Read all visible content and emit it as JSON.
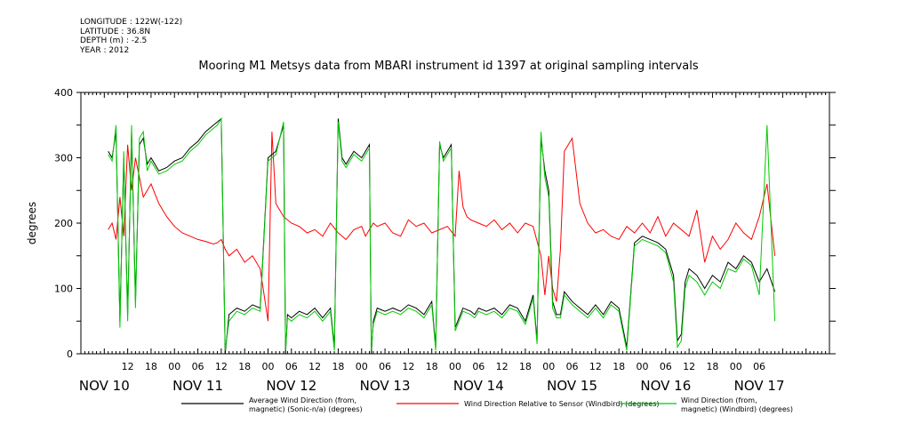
{
  "meta": {
    "longitude": "LONGITUDE : 122W(-122)",
    "latitude": "LATITUDE : 36.8N",
    "depth": "DEPTH (m) : -2.5",
    "year": "YEAR : 2012"
  },
  "chart_data": {
    "type": "line",
    "title": "Mooring M1 Metsys data from MBARI instrument id 1397 at original sampling intervals",
    "ylabel": "degrees",
    "ylim": [
      0,
      400
    ],
    "yticks": [
      0,
      100,
      200,
      300,
      400
    ],
    "xrange_hours": [
      0,
      192
    ],
    "x_axis_origin": "NOV 10 00",
    "hour_ticks": [
      "12",
      "18",
      "00",
      "06",
      "12",
      "18",
      "00",
      "06",
      "12",
      "18",
      "00",
      "06",
      "12",
      "18",
      "00",
      "06",
      "12",
      "18",
      "00",
      "06",
      "12",
      "18",
      "00",
      "06",
      "12",
      "18",
      "00",
      "06"
    ],
    "hour_tick_positions": [
      12,
      18,
      24,
      30,
      36,
      42,
      48,
      54,
      60,
      66,
      72,
      78,
      84,
      90,
      96,
      102,
      108,
      114,
      120,
      126,
      132,
      138,
      144,
      150,
      156,
      162,
      168,
      174
    ],
    "day_labels": [
      "NOV 10",
      "NOV 11",
      "NOV 12",
      "NOV 13",
      "NOV 14",
      "NOV 15",
      "NOV 16",
      "NOV 17"
    ],
    "day_label_positions": [
      6,
      30,
      54,
      78,
      102,
      126,
      150,
      174
    ],
    "legend_placement": "bottom",
    "grid": false,
    "series": [
      {
        "name": "Average Wind Direction (from, magnetic) (Sonic-n/a) (degrees)",
        "legend_line1": "Average Wind Direction (from,",
        "legend_line2": "magnetic) (Sonic-n/a) (degrees)",
        "color": "#000000",
        "x": [
          7,
          8,
          9,
          10,
          11,
          12,
          13,
          14,
          15,
          16,
          17,
          18,
          20,
          22,
          24,
          26,
          28,
          30,
          32,
          34,
          35,
          36,
          37,
          38,
          40,
          42,
          44,
          46,
          48,
          50,
          52,
          52.5,
          53,
          54,
          56,
          58,
          60,
          62,
          64,
          65,
          66,
          67,
          68,
          70,
          72,
          74,
          74.5,
          75,
          76,
          78,
          80,
          82,
          84,
          86,
          88,
          90,
          91,
          92,
          93,
          94,
          95,
          96,
          98,
          100,
          101,
          102,
          104,
          106,
          108,
          110,
          112,
          114,
          116,
          117,
          118,
          119,
          120,
          121,
          122,
          123,
          124,
          126,
          128,
          130,
          132,
          134,
          136,
          138,
          140,
          142,
          144,
          146,
          148,
          150,
          152,
          153,
          154,
          155,
          156,
          158,
          160,
          162,
          164,
          166,
          168,
          170,
          172,
          174,
          176,
          178
        ],
        "y": [
          310,
          300,
          340,
          50,
          300,
          60,
          340,
          80,
          320,
          330,
          290,
          300,
          280,
          285,
          295,
          300,
          315,
          325,
          340,
          350,
          355,
          360,
          0,
          60,
          70,
          65,
          75,
          70,
          300,
          310,
          350,
          0,
          60,
          55,
          65,
          60,
          70,
          55,
          70,
          10,
          360,
          300,
          290,
          310,
          300,
          320,
          0,
          50,
          70,
          65,
          70,
          65,
          75,
          70,
          60,
          80,
          10,
          320,
          300,
          310,
          320,
          40,
          70,
          65,
          60,
          70,
          65,
          70,
          60,
          75,
          70,
          50,
          90,
          20,
          330,
          280,
          250,
          80,
          60,
          60,
          95,
          80,
          70,
          60,
          75,
          60,
          80,
          70,
          10,
          170,
          180,
          175,
          170,
          160,
          120,
          20,
          30,
          110,
          130,
          120,
          100,
          120,
          110,
          140,
          130,
          150,
          140,
          110,
          130,
          95
        ],
        "values_approximate": true
      },
      {
        "name": "Wind Direction Relative to Sensor (Windbird) (degrees)",
        "legend_line1": "Wind Direction Relative to Sensor (Windbird) (degrees)",
        "legend_line2": "",
        "color": "#ff0000",
        "x": [
          7,
          8,
          9,
          10,
          11,
          12,
          13,
          14,
          15,
          16,
          17,
          18,
          19,
          20,
          22,
          24,
          26,
          28,
          30,
          32,
          34,
          35,
          36,
          37,
          38,
          40,
          42,
          44,
          46,
          48,
          49,
          50,
          52,
          54,
          56,
          58,
          60,
          62,
          64,
          66,
          68,
          70,
          72,
          73,
          74,
          75,
          76,
          78,
          80,
          82,
          84,
          86,
          88,
          90,
          92,
          94,
          96,
          97,
          98,
          99,
          100,
          102,
          104,
          106,
          108,
          110,
          112,
          114,
          116,
          118,
          119,
          120,
          121,
          122,
          123,
          124,
          126,
          128,
          130,
          132,
          134,
          136,
          138,
          140,
          142,
          144,
          146,
          148,
          150,
          152,
          154,
          156,
          158,
          160,
          162,
          164,
          166,
          168,
          170,
          172,
          174,
          176,
          178
        ],
        "y": [
          190,
          200,
          175,
          240,
          180,
          320,
          250,
          300,
          270,
          240,
          250,
          260,
          245,
          230,
          210,
          195,
          185,
          180,
          175,
          172,
          168,
          170,
          175,
          160,
          150,
          160,
          140,
          150,
          130,
          50,
          340,
          230,
          210,
          200,
          195,
          185,
          190,
          180,
          200,
          185,
          175,
          190,
          195,
          180,
          190,
          200,
          195,
          200,
          185,
          180,
          205,
          195,
          200,
          185,
          190,
          195,
          180,
          280,
          225,
          210,
          205,
          200,
          195,
          205,
          190,
          200,
          185,
          200,
          195,
          150,
          90,
          150,
          100,
          80,
          160,
          310,
          330,
          230,
          200,
          185,
          190,
          180,
          175,
          195,
          185,
          200,
          185,
          210,
          180,
          200,
          190,
          180,
          220,
          140,
          180,
          160,
          175,
          200,
          185,
          175,
          210,
          260,
          150
        ],
        "values_approximate": true
      },
      {
        "name": "Wind Direction (from, magnetic) (Windbird) (degrees)",
        "legend_line1": "Wind Direction (from,",
        "legend_line2": "magnetic) (Windbird) (degrees)",
        "color": "#00cc00",
        "x": [
          7,
          8,
          9,
          10,
          11,
          12,
          13,
          14,
          15,
          16,
          17,
          18,
          20,
          22,
          24,
          26,
          28,
          30,
          32,
          34,
          35,
          36,
          37,
          38,
          40,
          42,
          44,
          46,
          48,
          50,
          52,
          52.5,
          53,
          54,
          56,
          58,
          60,
          62,
          64,
          65,
          66,
          67,
          68,
          70,
          72,
          74,
          74.5,
          75,
          76,
          78,
          80,
          82,
          84,
          86,
          88,
          90,
          91,
          92,
          93,
          94,
          95,
          96,
          98,
          100,
          101,
          102,
          104,
          106,
          108,
          110,
          112,
          114,
          116,
          117,
          118,
          119,
          120,
          121,
          122,
          123,
          124,
          126,
          128,
          130,
          132,
          134,
          136,
          138,
          140,
          142,
          144,
          146,
          148,
          150,
          152,
          153,
          154,
          155,
          156,
          158,
          160,
          162,
          164,
          166,
          168,
          170,
          172,
          174,
          176,
          178
        ],
        "y": [
          305,
          295,
          350,
          40,
          310,
          50,
          350,
          70,
          330,
          340,
          280,
          295,
          275,
          280,
          290,
          295,
          310,
          320,
          335,
          345,
          350,
          360,
          5,
          50,
          65,
          60,
          70,
          65,
          295,
          305,
          355,
          5,
          55,
          50,
          60,
          55,
          65,
          50,
          65,
          5,
          355,
          295,
          285,
          305,
          295,
          315,
          5,
          45,
          65,
          60,
          65,
          60,
          70,
          65,
          55,
          75,
          5,
          325,
          295,
          305,
          315,
          35,
          65,
          60,
          55,
          65,
          60,
          65,
          55,
          70,
          65,
          45,
          85,
          15,
          340,
          270,
          240,
          70,
          55,
          55,
          90,
          75,
          65,
          55,
          70,
          55,
          75,
          65,
          5,
          165,
          175,
          170,
          165,
          155,
          110,
          10,
          20,
          100,
          120,
          110,
          90,
          110,
          100,
          130,
          125,
          145,
          135,
          90,
          350,
          50
        ],
        "values_approximate": true
      }
    ]
  }
}
